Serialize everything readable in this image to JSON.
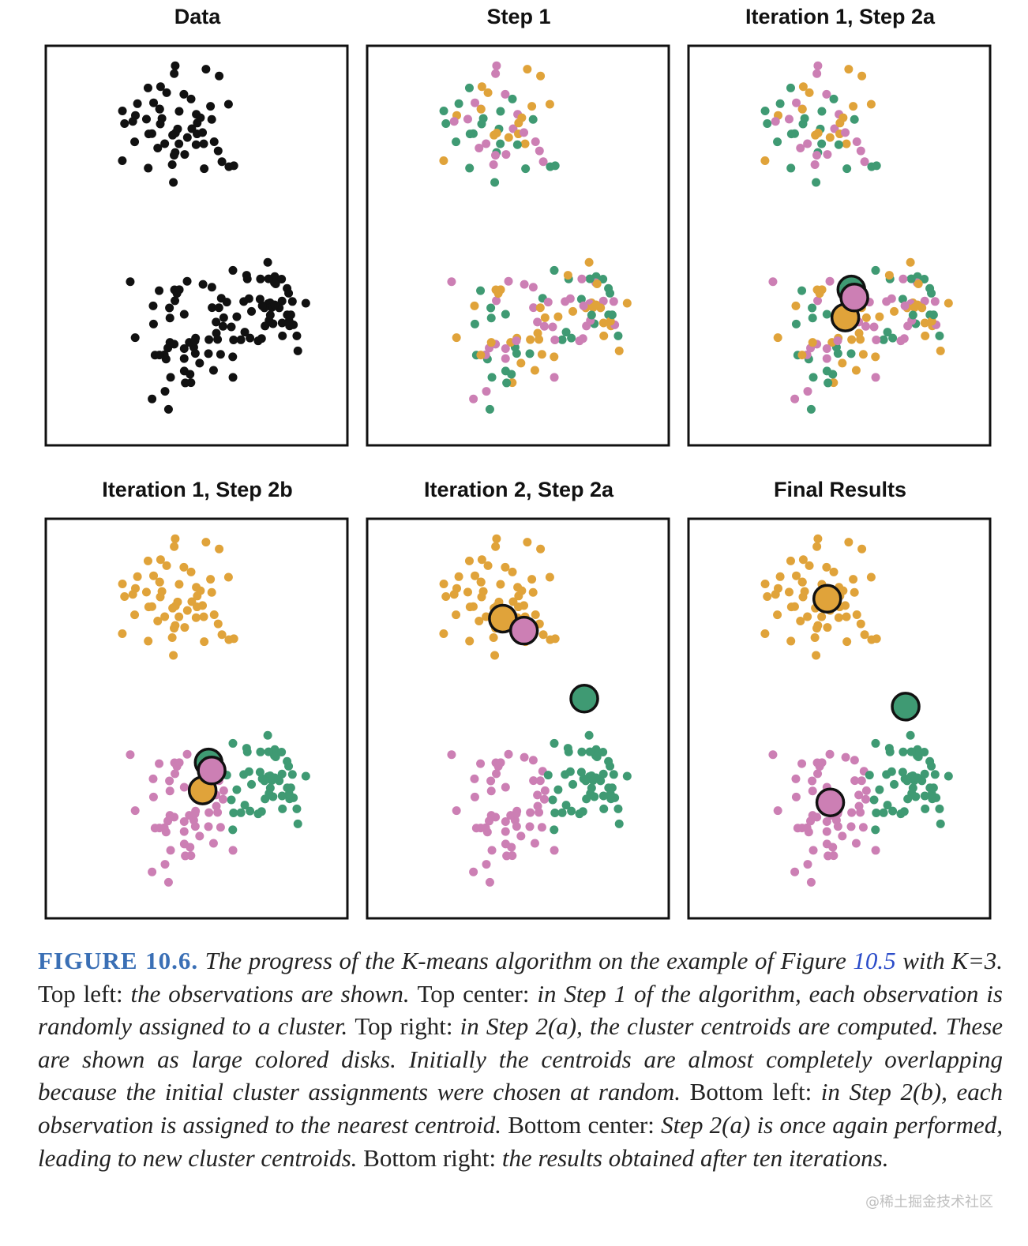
{
  "chart_data": [
    {
      "type": "scatter",
      "title": "Data",
      "panel": "data",
      "colors": "black"
    },
    {
      "type": "scatter",
      "title": "Step 1",
      "panel": "step1",
      "colors": "random"
    },
    {
      "type": "scatter",
      "title": "Iteration 1, Step 2a",
      "panel": "it1a",
      "colors": "random",
      "centroids": [
        [
          0.52,
          0.68
        ],
        [
          0.54,
          0.61
        ],
        [
          0.55,
          0.63
        ]
      ]
    },
    {
      "type": "scatter",
      "title": "Iteration 1, Step 2b",
      "panel": "it1b",
      "colors": "nearest",
      "centroids": [
        [
          0.52,
          0.68
        ],
        [
          0.54,
          0.61
        ],
        [
          0.55,
          0.63
        ]
      ]
    },
    {
      "type": "scatter",
      "title": "Iteration 2, Step 2a",
      "panel": "it2a",
      "colors": "nearest",
      "centroids": [
        [
          0.45,
          0.25
        ],
        [
          0.52,
          0.28
        ],
        [
          0.72,
          0.45
        ]
      ]
    },
    {
      "type": "scatter",
      "title": "Final Results",
      "panel": "final",
      "colors": "nearest",
      "centroids": [
        [
          0.46,
          0.2
        ],
        [
          0.47,
          0.71
        ],
        [
          0.72,
          0.47
        ]
      ]
    }
  ],
  "cluster_colors": {
    "orange": "#e0a33a",
    "pink": "#cc7fb4",
    "green": "#3f9a73",
    "black": "#111111"
  },
  "caption": {
    "figure_label": "FIGURE 10.6.",
    "t1": " The progress of the K-means algorithm on the example of Figure ",
    "fig_ref": "10.5",
    "t2": " with K=3. ",
    "r1": "Top left:",
    "t3": " the observations are shown. ",
    "r2": "Top center:",
    "t4": " in Step 1 of the algorithm, each observation is randomly assigned to a cluster. ",
    "r3": "Top right:",
    "t5": " in Step 2(a), the cluster centroids are computed. These are shown as large colored disks. Initially the centroids are almost completely overlapping because the initial cluster assignments were chosen at random. ",
    "r4": "Bottom left:",
    "t6": " in Step 2(b), each observation is assigned to the nearest centroid. ",
    "r5": "Bottom center:",
    "t7": " Step 2(a) is once again performed, leading to new cluster centroids. ",
    "r6": "Bottom right:",
    "t8": " the results obtained after ten iterations."
  },
  "watermark": "@稀土掘金技术社区"
}
